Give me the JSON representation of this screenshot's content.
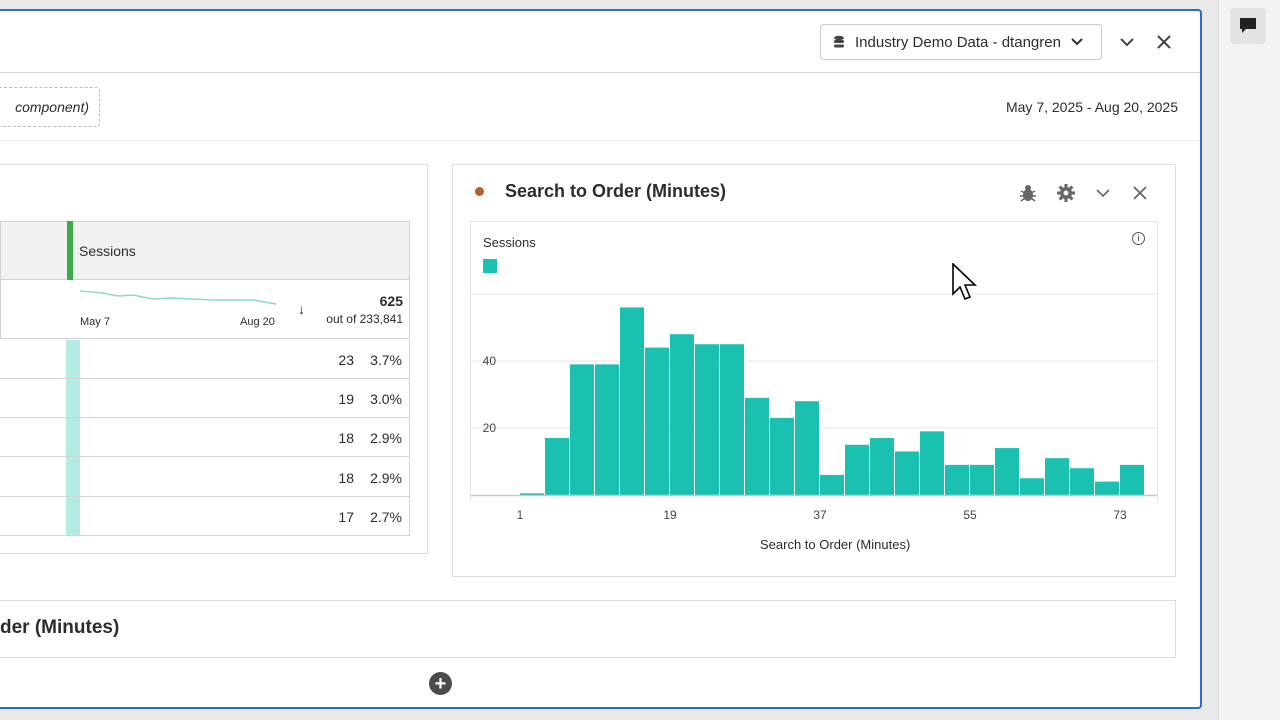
{
  "header": {
    "datasource_label": "Industry Demo Data - dtangren",
    "date_range": "May 7, 2025 - Aug 20, 2025",
    "component_placeholder": "component)"
  },
  "table": {
    "column_header": "Sessions",
    "spark_start": "May 7",
    "spark_end": "Aug 20",
    "total": "625",
    "total_of": "out of 233,841",
    "rows": [
      {
        "value": "23",
        "percent": "3.7%"
      },
      {
        "value": "19",
        "percent": "3.0%"
      },
      {
        "value": "18",
        "percent": "2.9%"
      },
      {
        "value": "18",
        "percent": "2.9%"
      },
      {
        "value": "17",
        "percent": "2.7%"
      }
    ]
  },
  "chart_panel": {
    "title": "Search to Order (Minutes)"
  },
  "bottom_panel": {
    "title": "der (Minutes)"
  },
  "colors": {
    "bar": "#1ac0b0",
    "accent": "#2f6ad0",
    "title_dot": "#b0622b"
  },
  "chart_data": {
    "type": "bar",
    "title": "Search to Order (Minutes)",
    "legend": [
      "Sessions"
    ],
    "legend_placement": "top-left",
    "xlabel": "Search to Order (Minutes)",
    "ylabel": "",
    "bin_width": 3,
    "x_start": 1,
    "x_ticks": [
      1,
      19,
      37,
      55,
      73
    ],
    "y_ticks": [
      20,
      40
    ],
    "y_gridlines": [
      20,
      40,
      60
    ],
    "ylim": [
      0,
      60
    ],
    "values": [
      0.5,
      17,
      39,
      39,
      56,
      44,
      48,
      45,
      45,
      29,
      23,
      28,
      6,
      15,
      17,
      13,
      19,
      9,
      9,
      14,
      5,
      11,
      8,
      4,
      9
    ]
  }
}
